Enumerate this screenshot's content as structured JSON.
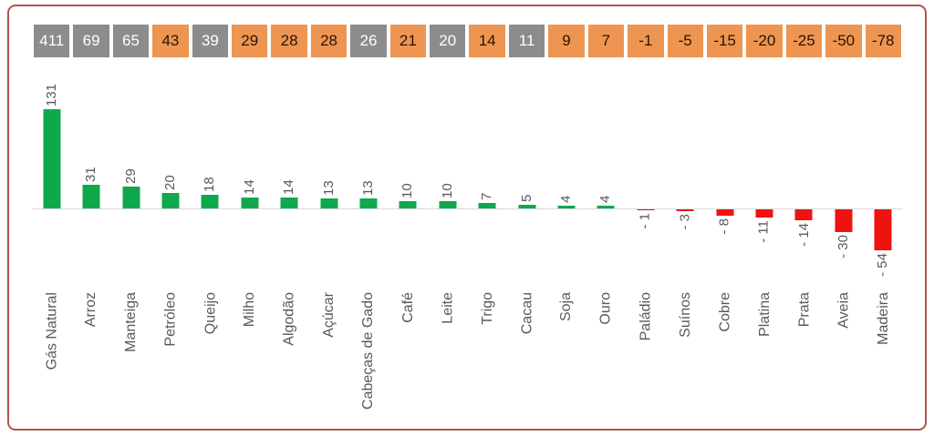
{
  "colors": {
    "positive_bar": "#10A84D",
    "negative_bar": "#EE1311",
    "chip_orange": "#EE9551",
    "chip_gray": "#8C8C8C",
    "chip_text_on_gray": "#FFFFFF",
    "chip_text_on_orange": "#271507",
    "label_text": "#595959",
    "frame_border": "#B0544E",
    "axis_line": "#D9D9D9"
  },
  "header_chips": [
    {
      "value": "411",
      "variant": "gray"
    },
    {
      "value": "69",
      "variant": "gray"
    },
    {
      "value": "65",
      "variant": "gray"
    },
    {
      "value": "43",
      "variant": "orange"
    },
    {
      "value": "39",
      "variant": "gray"
    },
    {
      "value": "29",
      "variant": "orange"
    },
    {
      "value": "28",
      "variant": "orange"
    },
    {
      "value": "28",
      "variant": "orange"
    },
    {
      "value": "26",
      "variant": "gray"
    },
    {
      "value": "21",
      "variant": "orange"
    },
    {
      "value": "20",
      "variant": "gray"
    },
    {
      "value": "14",
      "variant": "orange"
    },
    {
      "value": "11",
      "variant": "gray"
    },
    {
      "value": "9",
      "variant": "orange"
    },
    {
      "value": "7",
      "variant": "orange"
    },
    {
      "value": "-1",
      "variant": "orange"
    },
    {
      "value": "-5",
      "variant": "orange"
    },
    {
      "value": "-15",
      "variant": "orange"
    },
    {
      "value": "-20",
      "variant": "orange"
    },
    {
      "value": "-25",
      "variant": "orange"
    },
    {
      "value": "-50",
      "variant": "orange"
    },
    {
      "value": "-78",
      "variant": "orange"
    }
  ],
  "chart_data": {
    "type": "bar",
    "categories": [
      "Gás Natural",
      "Arroz",
      "Manteiga",
      "Petróleo",
      "Queijo",
      "Milho",
      "Algodão",
      "Açúcar",
      "Cabeças de Gado",
      "Café",
      "Leite",
      "Trigo",
      "Cacau",
      "Soja",
      "Ouro",
      "Paládio",
      "Suínos",
      "Cobre",
      "Platina",
      "Prata",
      "Aveia",
      "Madeira"
    ],
    "values": [
      131,
      31,
      29,
      20,
      18,
      14,
      14,
      13,
      13,
      10,
      10,
      7,
      5,
      4,
      4,
      -1,
      -3,
      -8,
      -11,
      -14,
      -30,
      -54
    ],
    "bar_value_labels": [
      "131",
      "31",
      "29",
      "20",
      "18",
      "14",
      "14",
      "13",
      "13",
      "10",
      "10",
      "7",
      "5",
      "4",
      "4",
      "- 1",
      "- 3",
      "- 8",
      "- 11",
      "- 14",
      "- 30",
      "- 54"
    ],
    "title": "",
    "xlabel": "",
    "ylabel": "",
    "ylim": [
      -60,
      140
    ],
    "grid": false,
    "legend": false,
    "label_rotation_deg": -90,
    "bar_color_rule": "green for positive values, red for negative values"
  }
}
